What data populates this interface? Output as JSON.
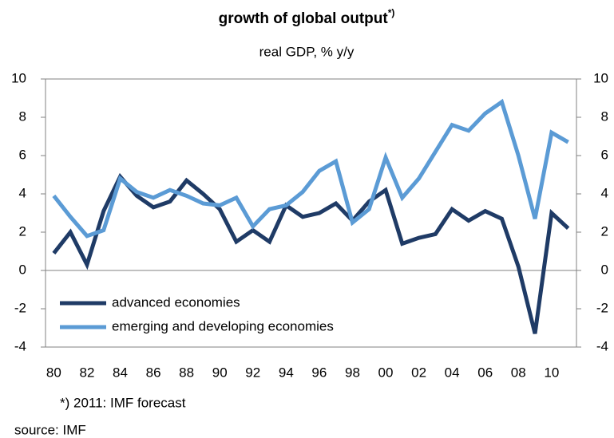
{
  "chart_data": {
    "type": "line",
    "title": "growth of global output",
    "title_marker": "*)",
    "subtitle": "real GDP, % y/y",
    "note": "*) 2011: IMF forecast",
    "source": "source: IMF",
    "categories": [
      "80",
      null,
      "82",
      null,
      "84",
      null,
      "86",
      null,
      "88",
      null,
      "90",
      null,
      "92",
      null,
      "94",
      null,
      "96",
      null,
      "98",
      null,
      "00",
      null,
      "02",
      null,
      "04",
      null,
      "06",
      null,
      "08",
      null,
      "10",
      null
    ],
    "series": [
      {
        "name": "advanced economies",
        "color": "#1f3b66",
        "values": [
          0.9,
          2.0,
          0.3,
          3.1,
          4.9,
          3.9,
          3.3,
          3.6,
          4.7,
          4.0,
          3.2,
          1.5,
          2.1,
          1.5,
          3.4,
          2.8,
          3.0,
          3.5,
          2.6,
          3.6,
          4.2,
          1.4,
          1.7,
          1.9,
          3.2,
          2.6,
          3.1,
          2.7,
          0.2,
          -3.3,
          3.0,
          2.2
        ]
      },
      {
        "name": "emerging and developing economies",
        "color": "#5b9bd5",
        "values": [
          3.9,
          2.8,
          1.8,
          2.1,
          4.8,
          4.1,
          3.8,
          4.2,
          3.9,
          3.5,
          3.4,
          3.8,
          2.3,
          3.2,
          3.4,
          4.1,
          5.2,
          5.7,
          2.5,
          3.2,
          5.9,
          3.8,
          4.8,
          6.2,
          7.6,
          7.3,
          8.2,
          8.8,
          6.0,
          2.7,
          7.2,
          6.7
        ]
      }
    ],
    "ylim": [
      -4,
      10
    ],
    "yticks": [
      -4,
      -2,
      0,
      2,
      4,
      6,
      8,
      10
    ],
    "y2lim": [
      -4,
      10
    ],
    "y2ticks": [
      -4,
      -2,
      0,
      2,
      4,
      6,
      8,
      10
    ],
    "grid": false,
    "legend": "lower left"
  }
}
